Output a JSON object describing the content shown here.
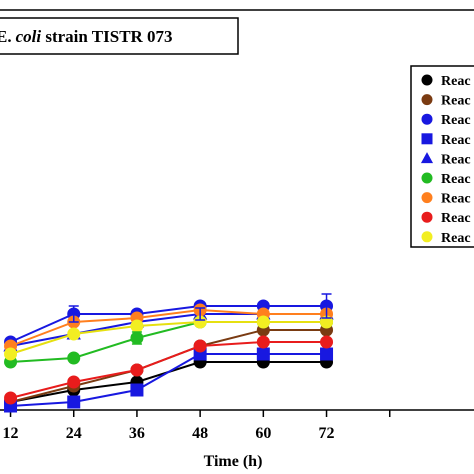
{
  "chart_data": {
    "type": "line",
    "title": "E. coli strain TISTR 073",
    "title_prefix_cut": "E.",
    "title_italic_part": "coli",
    "title_rest": " strain TISTR 073",
    "xlabel": "Time (h)",
    "ylabel": "",
    "x": [
      12,
      24,
      36,
      48,
      60,
      72
    ],
    "x_ticks": [
      12,
      24,
      36,
      48,
      60,
      72,
      84
    ],
    "x_tick_labels": [
      "12",
      "24",
      "36",
      "48",
      "60",
      "72",
      ""
    ],
    "xlim": [
      10,
      100
    ],
    "ylim": [
      0,
      100
    ],
    "grid": false,
    "legend_position": "top-right",
    "series": [
      {
        "name": "Reac",
        "marker": "circle",
        "color": "#000000",
        "values": [
          2,
          5,
          7,
          12,
          12,
          12
        ]
      },
      {
        "name": "Reac",
        "marker": "circle",
        "color": "#7a3b12",
        "values": [
          2,
          6,
          10,
          16,
          20,
          20
        ]
      },
      {
        "name": "Reac",
        "marker": "circle",
        "color": "#1818e0",
        "values": [
          17,
          24,
          24,
          26,
          26,
          26
        ]
      },
      {
        "name": "Reac",
        "marker": "square",
        "color": "#1818e0",
        "values": [
          1,
          2,
          5,
          14,
          14,
          14
        ]
      },
      {
        "name": "Reac",
        "marker": "triangle",
        "color": "#1818e0",
        "values": [
          16,
          19,
          22,
          24,
          24,
          24
        ]
      },
      {
        "name": "Reac",
        "marker": "circle",
        "color": "#22bb22",
        "values": [
          12,
          13,
          18,
          22,
          22,
          22
        ]
      },
      {
        "name": "Reac",
        "marker": "circle",
        "color": "#ff7f1e",
        "values": [
          16,
          22,
          23,
          25,
          24,
          24
        ]
      },
      {
        "name": "Reac",
        "marker": "circle",
        "color": "#e81c1c",
        "values": [
          3,
          7,
          10,
          16,
          17,
          17
        ]
      },
      {
        "name": "Reac",
        "marker": "circle",
        "color": "#f2ee22",
        "values": [
          14,
          19,
          21,
          22,
          22,
          22
        ]
      }
    ],
    "error_bars": [
      {
        "series": 2,
        "x": 24,
        "err": 2
      },
      {
        "series": 2,
        "x": 72,
        "err": 3
      },
      {
        "series": 4,
        "x": 48,
        "err": 1.5
      },
      {
        "series": 5,
        "x": 36,
        "err": 1.5
      }
    ]
  }
}
